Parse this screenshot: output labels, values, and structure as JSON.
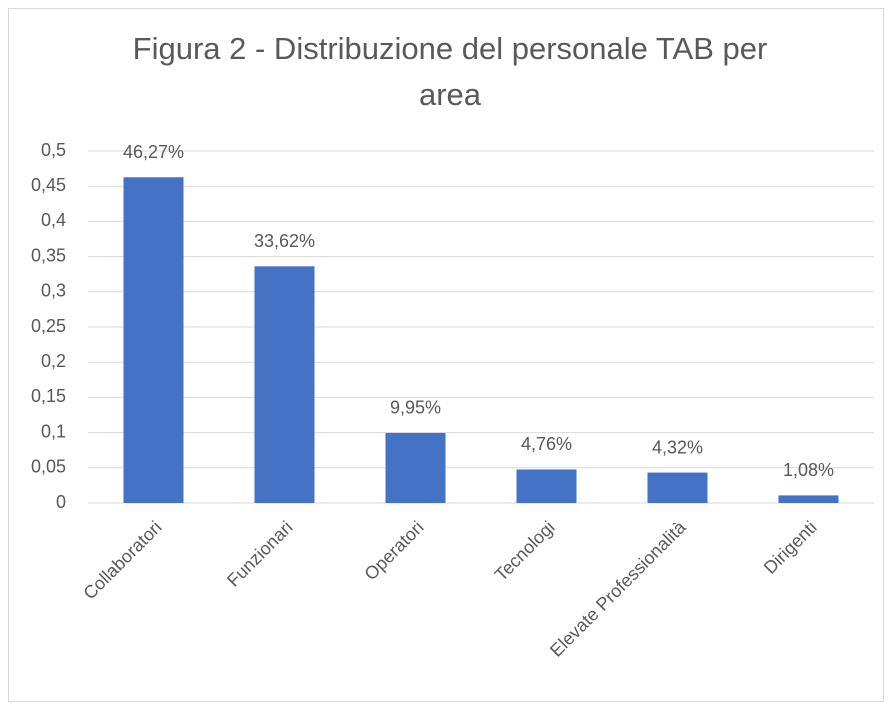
{
  "chart_data": {
    "type": "bar",
    "title": "Figura 2 - Distribuzione del personale TAB per area",
    "categories": [
      "Collaboratori",
      "Funzionari",
      "Operatori",
      "Tecnologi",
      "Elevate Professionalità",
      "Dirigenti"
    ],
    "values": [
      0.4627,
      0.3362,
      0.0995,
      0.0476,
      0.0432,
      0.0108
    ],
    "value_labels": [
      "46,27%",
      "33,62%",
      "9,95%",
      "4,76%",
      "4,32%",
      "1,08%"
    ],
    "color": "#4472c4",
    "ylim": [
      0,
      0.5
    ],
    "yticks": [
      0,
      {
        "value": 0.05,
        "label": "0,05"
      },
      {
        "value": 0.1,
        "label": "0,1"
      },
      {
        "value": 0.15,
        "label": "0,15"
      },
      {
        "value": 0.2,
        "label": "0,2"
      },
      {
        "value": 0.25,
        "label": "0,25"
      },
      {
        "value": 0.3,
        "label": "0,3"
      },
      {
        "value": 0.35,
        "label": "0,35"
      },
      {
        "value": 0.4,
        "label": "0,4"
      },
      {
        "value": 0.45,
        "label": "0,45"
      },
      {
        "value": 0.5,
        "label": "0,5"
      }
    ],
    "grid": true
  }
}
